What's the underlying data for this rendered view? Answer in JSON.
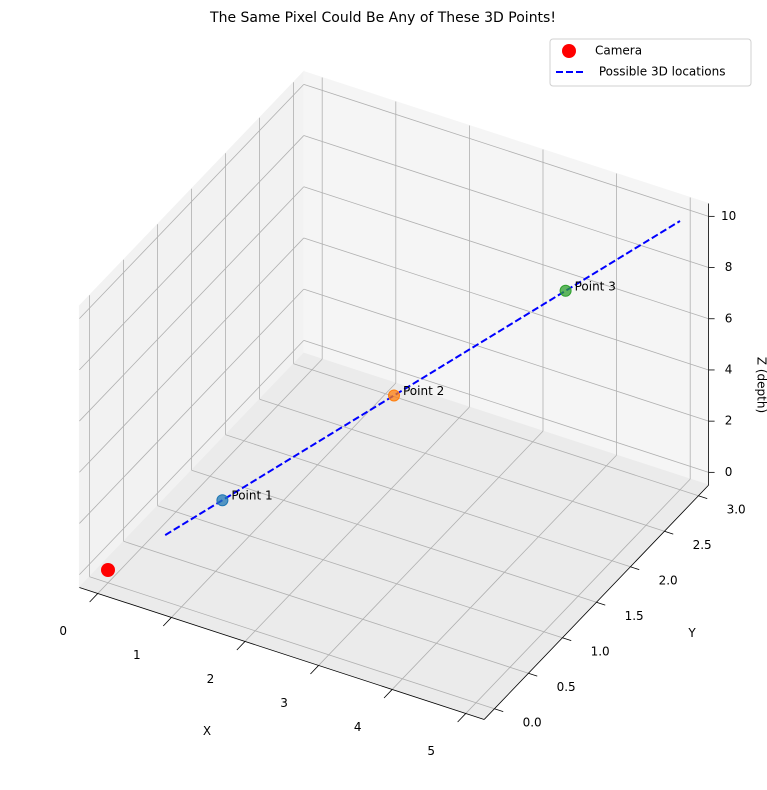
{
  "chart_data": {
    "type": "scatter3d",
    "title": "The Same Pixel Could Be Any of These 3D Points!",
    "xlabel": "X",
    "ylabel": "Y",
    "zlabel": "Z (depth)",
    "xlim": [
      -0.25,
      5.25
    ],
    "ylim": [
      -0.15,
      3.15
    ],
    "zlim": [
      -0.5,
      10.5
    ],
    "xticks": [
      0,
      1,
      2,
      3,
      4,
      5
    ],
    "yticks": [
      {
        "value": 0,
        "label": "0.0"
      },
      0.5,
      {
        "value": 1,
        "label": "1.0"
      },
      1.5,
      {
        "value": 2,
        "label": "2.0"
      },
      2.5,
      {
        "value": 3,
        "label": "3.0"
      }
    ],
    "zticks": [
      0,
      2,
      4,
      6,
      8,
      10
    ],
    "grid": true,
    "legend": "upper right",
    "camera": {
      "name": "Camera",
      "x": 0,
      "y": 0,
      "z": 0,
      "color": "#ff0000"
    },
    "line": {
      "name": " Possible 3D locations",
      "x": [
        0.5,
        5
      ],
      "y": [
        0.3,
        3
      ],
      "z": [
        1,
        10
      ],
      "color": "#0000ff"
    },
    "points": [
      {
        "label": "Point 1",
        "x": 1,
        "y": 0.6,
        "z": 2,
        "color": "#1f77b4"
      },
      {
        "label": "Point 2",
        "x": 2.5,
        "y": 1.5,
        "z": 5,
        "color": "#ff7f0e"
      },
      {
        "label": "Point 3",
        "x": 4,
        "y": 2.4,
        "z": 8,
        "color": "#2ca02c"
      }
    ]
  }
}
